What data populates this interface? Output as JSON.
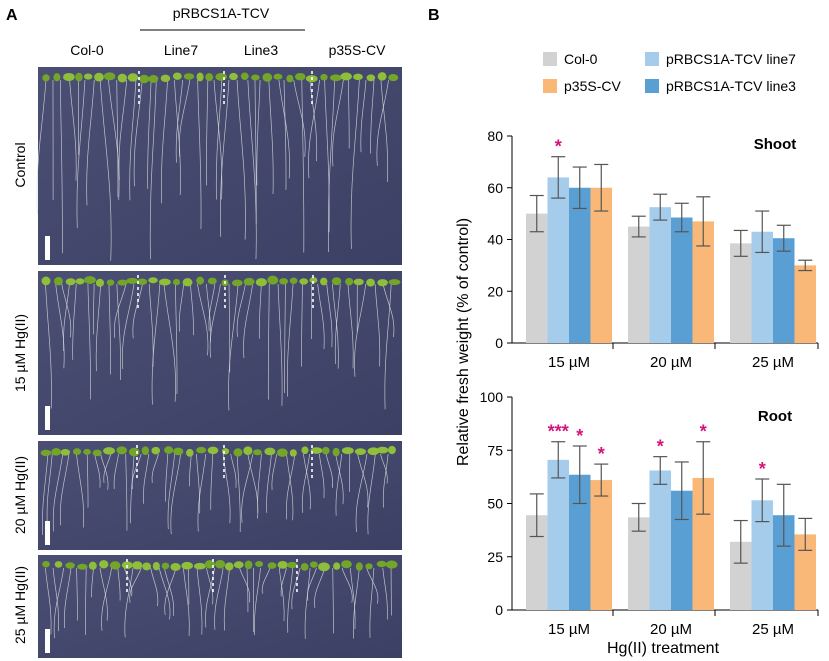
{
  "panel_a": {
    "label": "A",
    "group_header": "pRBCS1A-TCV",
    "columns": [
      "Col-0",
      "Line7",
      "Line3",
      "p35S-CV"
    ],
    "rows": [
      "Control",
      "15 µM Hg(II)",
      "20 µM Hg(II)",
      "25 µM Hg(II)"
    ]
  },
  "panel_b": {
    "label": "B",
    "colors": {
      "Col-0": "#d3d2d3",
      "line7": "#a6ccec",
      "line3": "#5a9fd4",
      "p35S-CV": "#f9b877",
      "star": "#d4147c",
      "error": "#555555"
    },
    "legend": [
      "Col-0",
      "pRBCS1A-TCV line7",
      "p35S-CV",
      "pRBCS1A-TCV line3"
    ]
  },
  "chart_data": [
    {
      "type": "bar",
      "title": "Shoot",
      "ylabel": "Relative fresh weight (% of control)",
      "xlabel": "",
      "ylim": [
        0,
        80
      ],
      "yticks": [
        0,
        20,
        40,
        60,
        80
      ],
      "categories": [
        "15 µM",
        "20 µM",
        "25 µM"
      ],
      "series": [
        {
          "name": "Col-0",
          "values": [
            50,
            45,
            38.5
          ],
          "errors": [
            7,
            4,
            5
          ]
        },
        {
          "name": "pRBCS1A-TCV line7",
          "values": [
            64,
            52.5,
            43
          ],
          "errors": [
            8,
            5,
            8
          ]
        },
        {
          "name": "pRBCS1A-TCV line3",
          "values": [
            60,
            48.5,
            40.5
          ],
          "errors": [
            8,
            5.5,
            5
          ]
        },
        {
          "name": "p35S-CV",
          "values": [
            60,
            47,
            30
          ],
          "errors": [
            9,
            9.5,
            2
          ]
        }
      ],
      "annotations": [
        {
          "category": "15 µM",
          "series": "pRBCS1A-TCV line7",
          "text": "*"
        }
      ]
    },
    {
      "type": "bar",
      "title": "Root",
      "ylabel": "Relative fresh weight (% of control)",
      "xlabel": "Hg(II) treatment",
      "ylim": [
        0,
        100
      ],
      "yticks": [
        0,
        25,
        50,
        75,
        100
      ],
      "categories": [
        "15 µM",
        "20 µM",
        "25 µM"
      ],
      "series": [
        {
          "name": "Col-0",
          "values": [
            44.5,
            43.5,
            32
          ],
          "errors": [
            10,
            6.5,
            10
          ]
        },
        {
          "name": "pRBCS1A-TCV line7",
          "values": [
            70.5,
            65.5,
            51.5
          ],
          "errors": [
            8.5,
            6.5,
            10
          ]
        },
        {
          "name": "pRBCS1A-TCV line3",
          "values": [
            63.5,
            56,
            44.5
          ],
          "errors": [
            13.5,
            13.5,
            14.5
          ]
        },
        {
          "name": "p35S-CV",
          "values": [
            61,
            62,
            35.5
          ],
          "errors": [
            7.5,
            17,
            7.5
          ]
        }
      ],
      "annotations": [
        {
          "category": "15 µM",
          "series": "pRBCS1A-TCV line7",
          "text": "***"
        },
        {
          "category": "15 µM",
          "series": "pRBCS1A-TCV line3",
          "text": "*"
        },
        {
          "category": "15 µM",
          "series": "p35S-CV",
          "text": "*"
        },
        {
          "category": "20 µM",
          "series": "pRBCS1A-TCV line7",
          "text": "*"
        },
        {
          "category": "20 µM",
          "series": "p35S-CV",
          "text": "*"
        },
        {
          "category": "25 µM",
          "series": "pRBCS1A-TCV line7",
          "text": "*"
        }
      ]
    }
  ]
}
